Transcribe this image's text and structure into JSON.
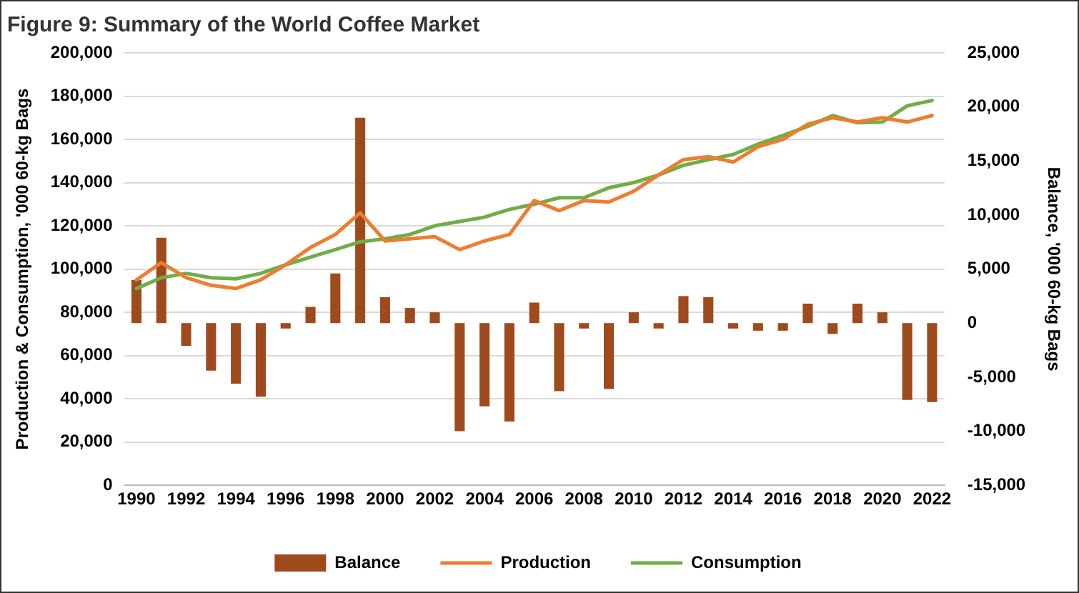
{
  "chart_data": {
    "type": "bar",
    "title": "Figure 9: Summary of the World Coffee Market",
    "ylabel": "Production & Consumption, '000 60-kg Bags",
    "y2label": "Balance, '000 60-kg Bags",
    "categories": [
      "1990",
      null,
      "1992",
      null,
      "1994",
      null,
      "1996",
      null,
      "1998",
      null,
      "2000",
      null,
      "2002",
      null,
      "2004",
      null,
      "2006",
      null,
      "2008",
      null,
      "2010",
      null,
      "2012",
      null,
      "2014",
      null,
      "2016",
      null,
      "2018",
      null,
      "2020",
      null,
      "2022"
    ],
    "series": [
      {
        "name": "Balance",
        "axis": "y2",
        "color": "#9e4a1c",
        "values": [
          4000,
          7900,
          -2100,
          -4400,
          -5600,
          -6800,
          -500,
          1500,
          4600,
          19000,
          2400,
          1400,
          1000,
          -10000,
          -7700,
          -9100,
          1900,
          -6300,
          -500,
          -6100,
          1000,
          -500,
          2500,
          2400,
          -500,
          -700,
          -700,
          1800,
          -1000,
          1800,
          1000,
          -7100,
          -7300
        ]
      },
      {
        "name": "Production",
        "type": "line",
        "color": "#ed7d31",
        "values": [
          95000,
          103000,
          96000,
          92500,
          91000,
          95000,
          102000,
          110000,
          116000,
          126000,
          113000,
          114000,
          115000,
          109000,
          113000,
          116000,
          131700,
          127000,
          131700,
          131000,
          136000,
          143500,
          150600,
          152000,
          149500,
          156600,
          160000,
          167000,
          170000,
          168000,
          170000,
          168000,
          171000
        ]
      },
      {
        "name": "Consumption",
        "type": "line",
        "color": "#70ad47",
        "values": [
          91000,
          96000,
          98000,
          96000,
          95500,
          98000,
          102000,
          105500,
          109000,
          112600,
          114000,
          116000,
          120000,
          122000,
          124000,
          127600,
          130000,
          133000,
          133000,
          137600,
          140000,
          143500,
          148000,
          150600,
          153000,
          157800,
          161800,
          166000,
          171000,
          167700,
          168000,
          175500,
          178000
        ]
      }
    ],
    "ylim": [
      0,
      200000
    ],
    "yticks": [
      {
        "value": 0,
        "label": "0"
      },
      {
        "value": 20000,
        "label": "20,000"
      },
      {
        "value": 40000,
        "label": "40,000"
      },
      {
        "value": 60000,
        "label": "60,000"
      },
      {
        "value": 80000,
        "label": "80,000"
      },
      {
        "value": 100000,
        "label": "100,000"
      },
      {
        "value": 120000,
        "label": "120,000"
      },
      {
        "value": 140000,
        "label": "140,000"
      },
      {
        "value": 160000,
        "label": "160,000"
      },
      {
        "value": 180000,
        "label": "180,000"
      },
      {
        "value": 200000,
        "label": "200,000"
      }
    ],
    "y2lim": [
      -15000,
      25000
    ],
    "y2ticks": [
      {
        "value": -15000,
        "label": "-15,000"
      },
      {
        "value": -10000,
        "label": "-10,000"
      },
      {
        "value": -5000,
        "label": "-5,000"
      },
      {
        "value": 0,
        "label": "0"
      },
      {
        "value": 5000,
        "label": "5,000"
      },
      {
        "value": 10000,
        "label": "10,000"
      },
      {
        "value": 15000,
        "label": "15,000"
      },
      {
        "value": 20000,
        "label": "20,000"
      },
      {
        "value": 25000,
        "label": "25,000"
      }
    ],
    "grid": "y",
    "legend": "bottom",
    "marker": "none",
    "line_style": "solid"
  }
}
